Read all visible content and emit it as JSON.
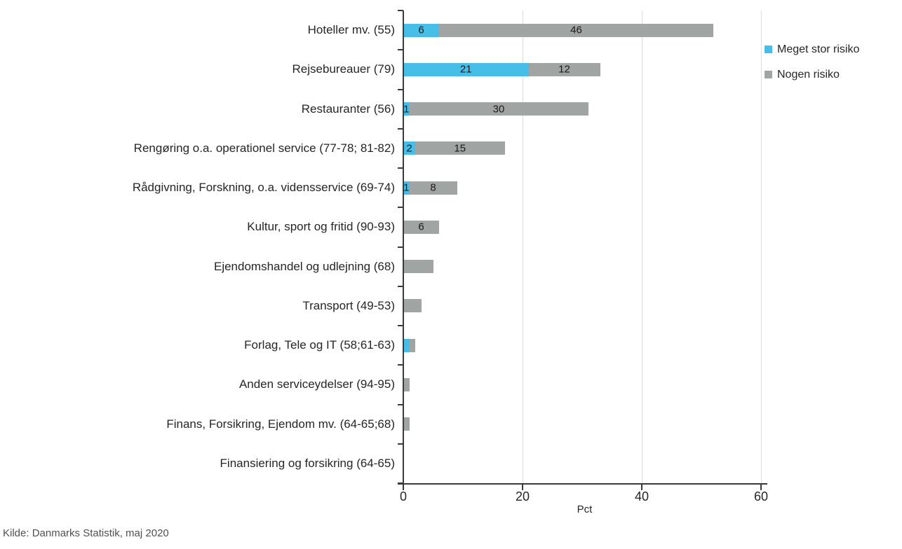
{
  "chart_data": {
    "type": "bar",
    "orientation": "horizontal",
    "stacked": true,
    "title": "",
    "xlabel": "Pct",
    "ylabel": "",
    "xlim": [
      0,
      60
    ],
    "x_ticks": [
      0,
      20,
      40,
      60
    ],
    "grid": "vertical-light",
    "legend_position": "right",
    "categories": [
      "Hoteller mv. (55)",
      "Rejsebureauer (79)",
      "Restauranter (56)",
      "Rengøring o.a. operationel service (77-78; 81-82)",
      "Rådgivning, Forskning, o.a. vidensservice (69-74)",
      "Kultur, sport og fritid (90-93)",
      "Ejendomshandel og udlejning (68)",
      "Transport (49-53)",
      "Forlag, Tele og IT (58;61-63)",
      "Anden serviceydelser (94-95)",
      "Finans, Forsikring, Ejendom mv. (64-65;68)",
      "Finansiering og forsikring (64-65)"
    ],
    "series": [
      {
        "name": "Meget stor risiko",
        "color": "#47BEE8",
        "values": [
          6,
          21,
          1,
          2,
          1,
          0,
          0,
          0,
          1,
          0,
          0,
          0
        ],
        "labels": [
          "6",
          "21",
          "1",
          "2",
          "1",
          "",
          "",
          "",
          "",
          "",
          "",
          ""
        ]
      },
      {
        "name": "Nogen risiko",
        "color": "#A0A5A4",
        "values": [
          46,
          12,
          30,
          15,
          8,
          6,
          5,
          3,
          1,
          1,
          1,
          0
        ],
        "labels": [
          "46",
          "12",
          "30",
          "15",
          "8",
          "6",
          "",
          "",
          "",
          "",
          "",
          ""
        ]
      }
    ]
  },
  "source": "Kilde: Danmarks Statistik, maj 2020"
}
